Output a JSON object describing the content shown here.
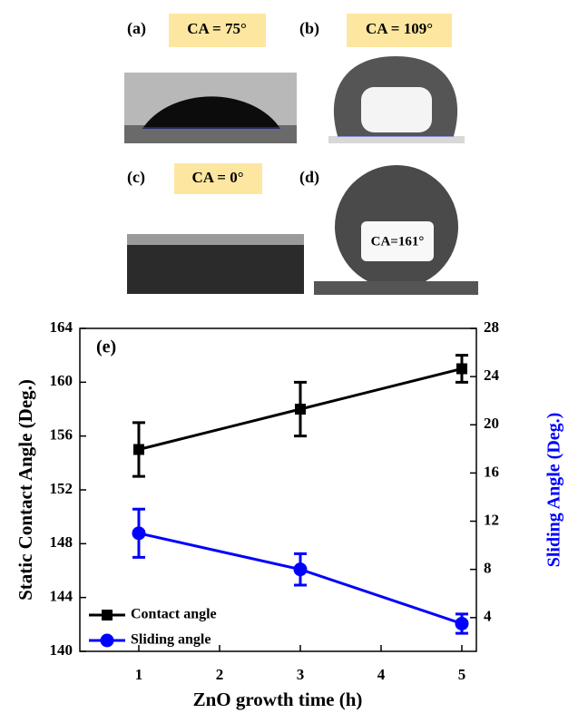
{
  "panels": [
    {
      "label": "(a)",
      "ca": "CA = 75°"
    },
    {
      "label": "(b)",
      "ca": "CA = 109°"
    },
    {
      "label": "(c)",
      "ca": "CA = 0°"
    },
    {
      "label": "(d)",
      "ca": "CA=161°"
    }
  ],
  "chart_data": {
    "type": "line",
    "panel_label": "(e)",
    "x": [
      1,
      3,
      5
    ],
    "series": [
      {
        "name": "Contact angle",
        "color": "#000000",
        "marker": "square",
        "values": [
          155,
          158,
          161
        ],
        "errors": [
          2,
          2,
          1
        ]
      },
      {
        "name": "Sliding angle",
        "color": "#0000ff",
        "marker": "circle",
        "axis": "y2",
        "values": [
          11,
          8,
          3.5
        ],
        "errors": [
          2,
          1.3,
          0.8
        ]
      }
    ],
    "xlim": [
      0.27,
      5.18
    ],
    "xticks": [
      1,
      2,
      3,
      4,
      5
    ],
    "ylim": [
      140,
      164
    ],
    "yticks": [
      140,
      144,
      148,
      152,
      156,
      160,
      164
    ],
    "y2lim": [
      1.2,
      28
    ],
    "y2ticks": [
      4,
      8,
      12,
      16,
      20,
      24,
      28
    ],
    "xlabel": "ZnO growth time (h)",
    "ylabel": "Static Contact Angle (Deg.)",
    "y2label": "Sliding Angle (Deg.)",
    "y2label_color": "#0000ff",
    "legend": "lower left"
  }
}
